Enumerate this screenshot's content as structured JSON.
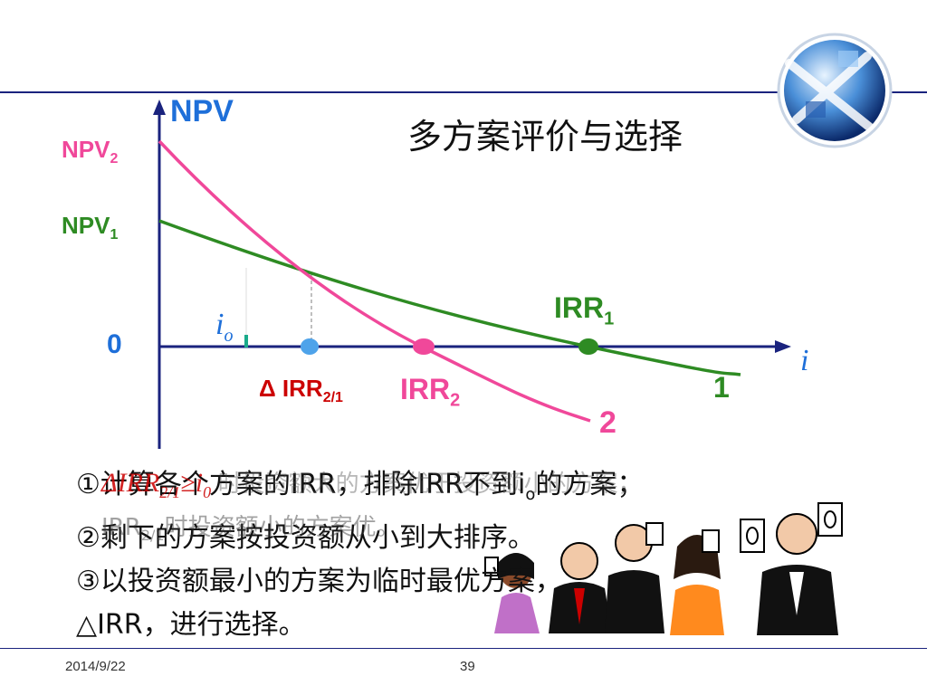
{
  "slide": {
    "title": "多方案评价与选择",
    "date": "2014/9/22",
    "page_number": "39",
    "logo_icon": "globe-logo-icon",
    "illustration_icon": "voting-people-illustration-icon",
    "colors": {
      "rule": "#1a237e",
      "axis": "#1a237e",
      "npv_label": "#1e6fd9",
      "curve_2": "#f0489a",
      "curve_1": "#2e8b23",
      "irr_label": "#cc0000"
    }
  },
  "diagram": {
    "y_axis_label": "NPV",
    "x_axis_label": "i",
    "origin_label": "0",
    "npv2_label": "NPV",
    "npv2_sub": "2",
    "npv1_label": "NPV",
    "npv1_sub": "1",
    "io_label": "i",
    "io_sub": "o",
    "delta_irr_label": "Δ IRR",
    "delta_irr_sub": "2/1",
    "irr2_label": "IRR",
    "irr2_sub": "2",
    "irr1_label": "IRR",
    "irr1_sub": "1",
    "curve1_label": "1",
    "curve2_label": "2"
  },
  "bullets": [
    "①计算各个方案的IRR，排除IRR不到i",
    "②剩下的方案按投资额从小到大排序。",
    "③以投资额最小的方案为临时最优方案，",
    "△IRR，进行选择。"
  ],
  "bullet1_sub": "o",
  "bullet1_tail": "的方案；",
  "overlay": {
    "delta": "ΔIRR",
    "sub": "2/1",
    "ge": "≥i",
    "ge_sub": "0",
    "tail": "时投资额大的方案优于投资额小的方案，",
    "line2": "IRR",
    "line2_sub": "2/1",
    "line2_tail": "时投资额小的方案优。"
  }
}
